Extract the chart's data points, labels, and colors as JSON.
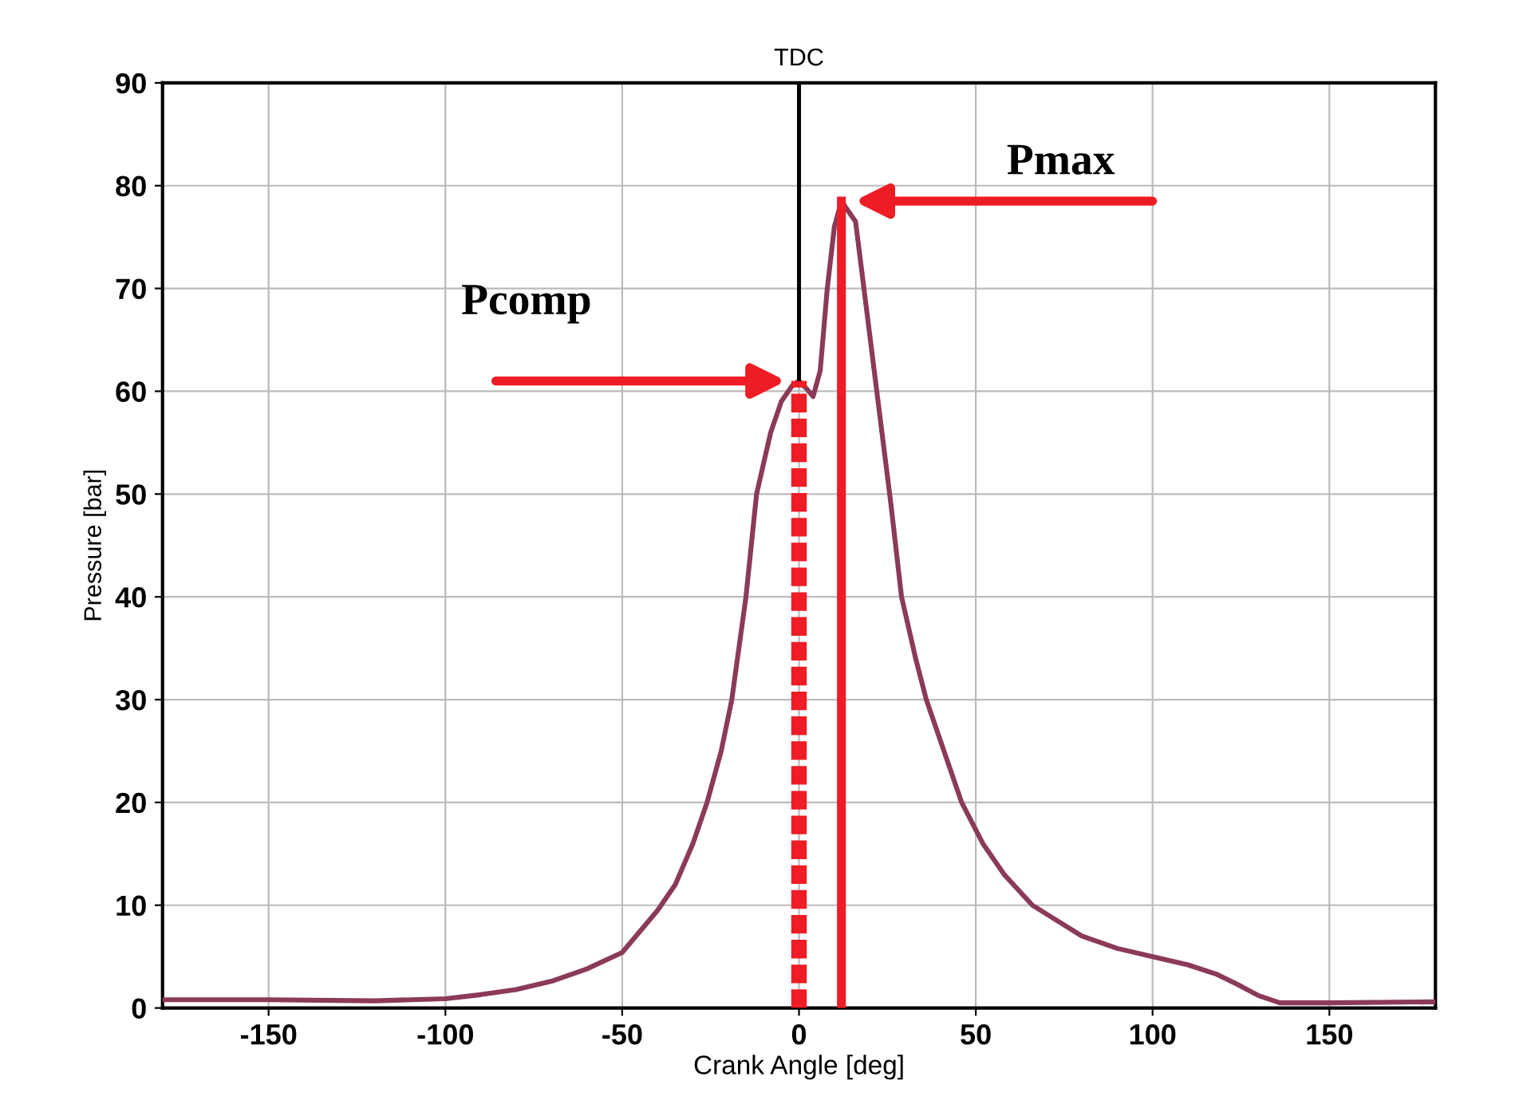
{
  "chart_data": {
    "type": "line",
    "xlabel": "Crank Angle [deg]",
    "ylabel": "Pressure [bar]",
    "x": [
      -180,
      -150,
      -120,
      -100,
      -90,
      -80,
      -70,
      -60,
      -50,
      -40,
      -35,
      -30,
      -26,
      -22,
      -19,
      -15,
      -12,
      -8,
      -5,
      -2,
      0,
      2,
      4,
      6,
      8,
      10,
      12,
      14,
      16,
      18,
      22,
      26,
      29,
      33,
      36,
      40,
      46,
      52,
      58,
      66,
      80,
      90,
      100,
      110,
      118,
      124,
      130,
      136,
      150,
      180
    ],
    "series": [
      {
        "color": "#8b3a5a",
        "values": [
          0.8,
          0.8,
          0.7,
          0.9,
          1.3,
          1.8,
          2.6,
          3.8,
          5.4,
          9.5,
          12,
          16,
          20,
          25,
          30,
          40,
          50,
          56,
          59,
          60.5,
          61,
          60.3,
          59.5,
          62,
          70,
          76,
          78.5,
          77.5,
          76.5,
          71,
          60,
          49,
          40,
          34,
          30,
          26,
          20,
          16,
          13,
          10,
          7,
          5.8,
          5,
          4.2,
          3.3,
          2.3,
          1.2,
          0.5,
          0.5,
          0.6
        ]
      }
    ],
    "xlim": [
      -180,
      180
    ],
    "ylim": [
      0,
      90
    ],
    "xticks": [
      -150,
      -100,
      -50,
      0,
      50,
      100,
      150
    ],
    "yticks": [
      0,
      10,
      20,
      30,
      40,
      50,
      60,
      70,
      80,
      90
    ],
    "grid": true,
    "marker": "none",
    "line_style": "solid",
    "ref_lines": [
      {
        "axis": "x",
        "value": 0,
        "label": "TDC",
        "color": "#000000",
        "line_style": "solid"
      },
      {
        "axis": "x",
        "value": 0,
        "label": null,
        "color": "#ee1c25",
        "line_style": "dashed"
      },
      {
        "axis": "x",
        "value": 12,
        "label": null,
        "color": "#ee1c25",
        "line_style": "solid"
      }
    ],
    "annotations": [
      "Pcomp",
      "Pmax"
    ]
  }
}
